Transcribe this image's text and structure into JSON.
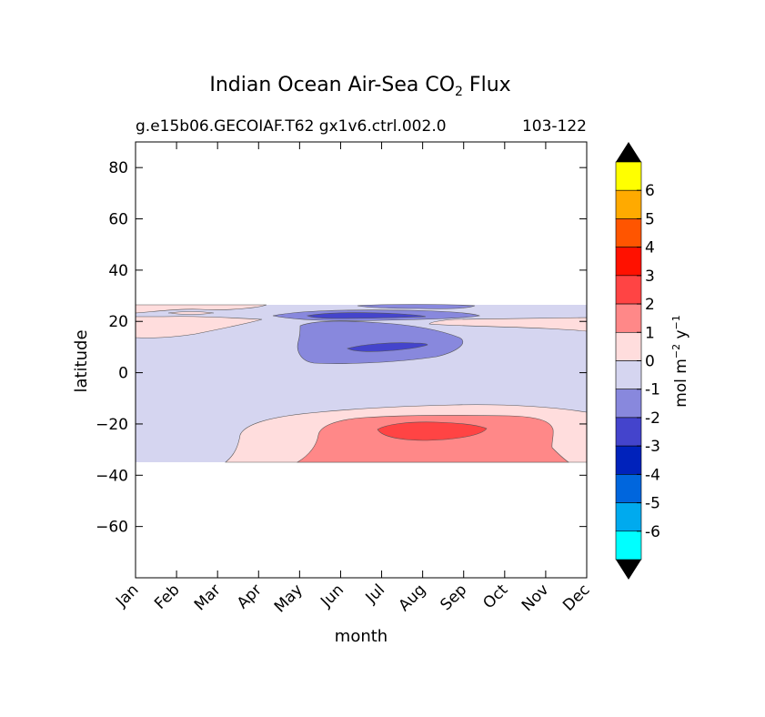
{
  "chart_data": {
    "type": "heatmap",
    "title": "Indian Ocean Air-Sea CO",
    "title_subscript": "2",
    "title_suffix": " Flux",
    "subtitle_left": "g.e15b06.GECOIAF.T62 gx1v6.ctrl.002.0",
    "subtitle_right": "103-122",
    "xlabel": "month",
    "ylabel": "latitude",
    "x_categories": [
      "Jan",
      "Feb",
      "Mar",
      "Apr",
      "May",
      "Jun",
      "Jul",
      "Aug",
      "Sep",
      "Oct",
      "Nov",
      "Dec"
    ],
    "y_ticks": [
      80,
      60,
      40,
      20,
      0,
      -20,
      -40,
      -60
    ],
    "ylim": [
      -80,
      90
    ],
    "data_lat_range": [
      -34,
      27
    ],
    "colorbar": {
      "label_main": "mol m",
      "label_exp1": "−2",
      "label_mid": " y",
      "label_exp2": "−1",
      "tick_labels": [
        "6",
        "5",
        "4",
        "3",
        "2",
        "1",
        "0",
        "-1",
        "-2",
        "-3",
        "-4",
        "-5",
        "-6"
      ],
      "colors": [
        "#ffff00",
        "#ffaa00",
        "#ff5500",
        "#ff1100",
        "#ff4444",
        "#ff8888",
        "#ffdddd",
        "#d5d5f0",
        "#8888dd",
        "#4444cc",
        "#0022bb",
        "#0066dd",
        "#00aaee",
        "#00ffff"
      ],
      "extend_color": "#000000"
    },
    "regions": [
      {
        "level": 0,
        "color": "#d5d5f0",
        "lat_min": -34,
        "lat_max": 27,
        "month_min": 0,
        "month_max": 11
      },
      {
        "level": 1,
        "color": "#ffdddd",
        "desc": "southern positive band",
        "lat_range": [
          -34,
          -11
        ],
        "months": [
          2.5,
          11
        ]
      },
      {
        "level": 2,
        "color": "#ff8888",
        "lat_range": [
          -34,
          -17
        ],
        "months": [
          3.9,
          10.4
        ]
      },
      {
        "level": 3,
        "color": "#ff4444",
        "lat_range": [
          -25,
          -18
        ],
        "months": [
          6,
          8.6
        ]
      },
      {
        "level": -1,
        "color": "#8888dd",
        "lat_range": [
          4,
          25
        ],
        "months": [
          3.2,
          8.2
        ]
      },
      {
        "level": -2,
        "color": "#4444cc",
        "lat_range": [
          8,
          24
        ],
        "months": [
          4.3,
          7.4
        ]
      }
    ]
  }
}
